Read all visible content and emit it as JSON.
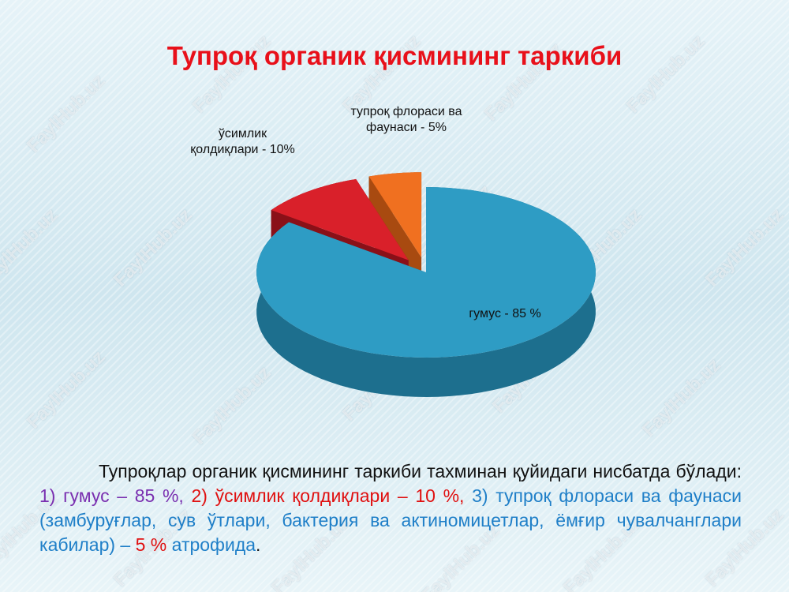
{
  "chart_data": {
    "type": "pie3d",
    "title": "Тупроқ органик қисмининг таркиби",
    "categories": [
      "гумус",
      "ўсимлик қолдиқлари",
      "тупроқ флораси ва фаунаси"
    ],
    "values": [
      85,
      10,
      5
    ],
    "value_labels": [
      "гумус - 85 %",
      "ўсимлик қолдиқлари - 10%",
      "тупроқ флораси ва фаунаси - 5%"
    ],
    "colors": [
      "#2e9cc4",
      "#d9202a",
      "#f07020"
    ],
    "side_colors": [
      "#1d6f8e",
      "#8a1018",
      "#a84a10"
    ]
  },
  "body": {
    "segments": [
      {
        "text": "Тупроқлар органик қисмининг таркиби тахминан қуйидаги нисбатда бўлади: ",
        "color": "#111111"
      },
      {
        "text": "1) гумус – 85 %,",
        "color": "#7a2fb0"
      },
      {
        "text": " 2) ўсимлик қолдиқлари – 10 %,",
        "color": "#e01010"
      },
      {
        "text": " 3) тупроқ флораси ва фаунаси (замбуруғлар, сув ўтлари, бактерия ва актиномицетлар, ёмғир чувалчанглари кабилар) – ",
        "color": "#1f7fc8"
      },
      {
        "text": "5 %",
        "color": "#e01010"
      },
      {
        "text": " атрофида",
        "color": "#1f7fc8"
      },
      {
        "text": ".",
        "color": "#111111"
      }
    ]
  },
  "watermark": "FaylHub.uz"
}
